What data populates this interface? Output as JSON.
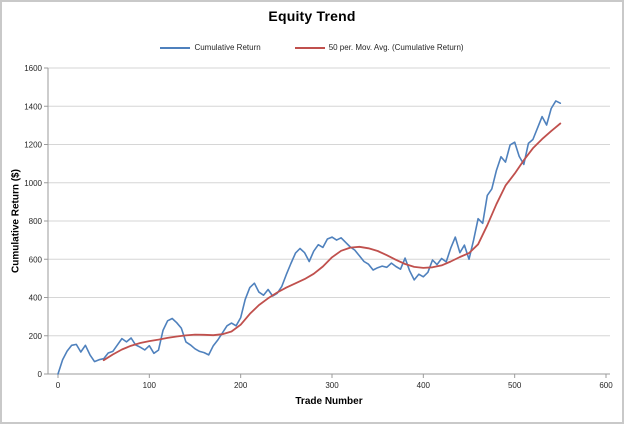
{
  "figure": {
    "title": "Equity Trend",
    "x_axis_label": "Trade Number",
    "y_axis_label": "Cumulative Return ($)"
  },
  "legend": {
    "items": [
      {
        "label": "Cumulative Return",
        "color": "#4F81BD"
      },
      {
        "label": "50 per. Mov. Avg. (Cumulative Return)",
        "color": "#C0504D"
      }
    ]
  },
  "colors": {
    "background": "#FFFFFF",
    "figure_border": "#C9C9C9",
    "gridline": "#D6D6D6",
    "axis_line": "#9B9B9B",
    "tick_label": "#262626",
    "blue_series": "#4F81BD",
    "red_series": "#C0504D"
  },
  "chart_data": {
    "type": "line",
    "title": "Equity Trend",
    "xlabel": "Trade Number",
    "ylabel": "Cumulative Return ($)",
    "xlim": [
      0,
      600
    ],
    "ylim": [
      0,
      1600
    ],
    "x_ticks": [
      0,
      100,
      200,
      300,
      400,
      500,
      600
    ],
    "y_ticks": [
      0,
      200,
      400,
      600,
      800,
      1000,
      1200,
      1400,
      1600
    ],
    "grid": "horizontal",
    "legend_position": "top",
    "series": [
      {
        "name": "Cumulative Return",
        "key": "cumulative-return",
        "color": "#4F81BD",
        "stroke_width": 1.6,
        "x": [
          0,
          5,
          10,
          15,
          20,
          25,
          30,
          35,
          40,
          45,
          50,
          55,
          60,
          65,
          70,
          75,
          80,
          85,
          90,
          95,
          100,
          105,
          110,
          115,
          120,
          125,
          130,
          135,
          140,
          145,
          150,
          155,
          160,
          165,
          170,
          175,
          180,
          185,
          190,
          195,
          200,
          205,
          210,
          215,
          220,
          225,
          230,
          235,
          240,
          245,
          250,
          255,
          260,
          265,
          270,
          275,
          280,
          285,
          290,
          295,
          300,
          305,
          310,
          315,
          320,
          325,
          330,
          335,
          340,
          345,
          350,
          355,
          360,
          365,
          370,
          375,
          380,
          385,
          390,
          395,
          400,
          405,
          410,
          415,
          420,
          425,
          430,
          435,
          440,
          445,
          450,
          455,
          460,
          465,
          470,
          475,
          480,
          485,
          490,
          495,
          500,
          505,
          510,
          515,
          520,
          525,
          530,
          535,
          540,
          545,
          550
        ],
        "y": [
          0,
          75,
          120,
          150,
          155,
          115,
          150,
          100,
          65,
          75,
          80,
          110,
          118,
          152,
          185,
          168,
          188,
          152,
          140,
          126,
          148,
          108,
          125,
          228,
          278,
          290,
          268,
          240,
          168,
          152,
          132,
          118,
          112,
          100,
          148,
          178,
          215,
          252,
          266,
          252,
          295,
          390,
          452,
          475,
          428,
          412,
          442,
          408,
          422,
          458,
          520,
          578,
          632,
          656,
          634,
          588,
          642,
          676,
          662,
          706,
          716,
          700,
          712,
          688,
          664,
          648,
          618,
          588,
          574,
          544,
          556,
          564,
          558,
          580,
          562,
          548,
          606,
          540,
          492,
          522,
          508,
          532,
          596,
          572,
          604,
          586,
          658,
          716,
          634,
          674,
          600,
          700,
          812,
          788,
          934,
          968,
          1064,
          1136,
          1108,
          1198,
          1212,
          1138,
          1096,
          1206,
          1226,
          1286,
          1346,
          1302,
          1388,
          1428,
          1416
        ]
      },
      {
        "name": "50 per. Mov. Avg. (Cumulative Return)",
        "key": "moving-average",
        "color": "#C0504D",
        "stroke_width": 1.8,
        "x": [
          50,
          60,
          70,
          80,
          90,
          100,
          110,
          120,
          130,
          140,
          150,
          160,
          170,
          180,
          190,
          200,
          210,
          220,
          230,
          240,
          250,
          260,
          270,
          280,
          290,
          300,
          310,
          320,
          330,
          340,
          350,
          360,
          370,
          380,
          390,
          400,
          410,
          420,
          430,
          440,
          450,
          460,
          470,
          480,
          490,
          500,
          510,
          520,
          530,
          540,
          550
        ],
        "y": [
          72,
          102,
          128,
          148,
          162,
          172,
          180,
          189,
          196,
          202,
          206,
          205,
          203,
          208,
          222,
          258,
          314,
          360,
          396,
          426,
          452,
          474,
          496,
          524,
          562,
          610,
          644,
          661,
          665,
          657,
          643,
          621,
          597,
          575,
          560,
          555,
          558,
          568,
          588,
          612,
          632,
          678,
          778,
          888,
          985,
          1048,
          1118,
          1180,
          1228,
          1270,
          1310
        ]
      }
    ]
  }
}
